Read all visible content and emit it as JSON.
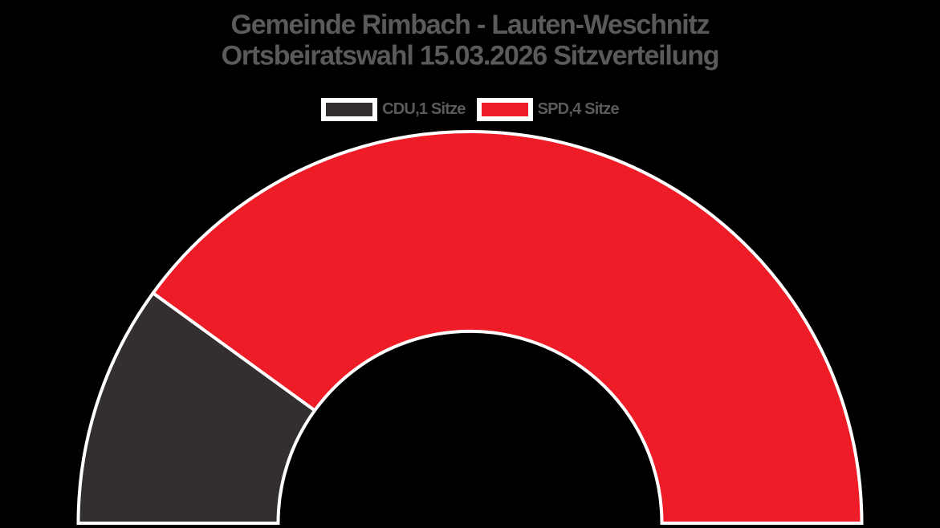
{
  "title": {
    "line1": "Gemeinde Rimbach - Lauten-Weschnitz",
    "line2": "Ortsbeiratswahl 15.03.2026 Sitzverteilung"
  },
  "legend": {
    "items": [
      {
        "label": "CDU,1 Sitze",
        "color": "#332f30"
      },
      {
        "label": "SPD,4 Sitze",
        "color": "#ed1c26"
      }
    ]
  },
  "chart_data": {
    "type": "pie",
    "subtype": "half-donut-parliament",
    "title": "Gemeinde Rimbach - Lauten-Weschnitz Ortsbeiratswahl 15.03.2026 Sitzverteilung",
    "categories": [
      "CDU",
      "SPD"
    ],
    "values": [
      1,
      4
    ],
    "value_unit": "Sitze",
    "total_seats": 5,
    "colors": [
      "#332f30",
      "#ed1c26"
    ],
    "start_angle_deg": 180,
    "end_angle_deg": 0,
    "donut_inner_ratio": 0.49,
    "segment_outline_color": "#ffffff",
    "background_color": "#000000",
    "title_color": "#595a5c",
    "legend_position": "top-center"
  }
}
